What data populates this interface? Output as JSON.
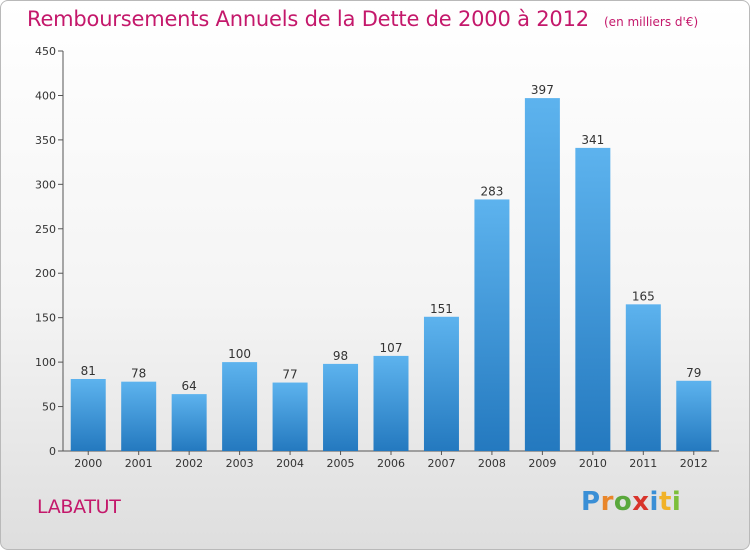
{
  "title": "Remboursements Annuels de la Dette de 2000 à 2012",
  "unit_note": "(en milliers d'€)",
  "place_name": "LABATUT",
  "logo": {
    "text": "Proxiti"
  },
  "colors": {
    "accent": "#c4186b",
    "bar_top": "#5db3ee",
    "bar_bottom": "#2479bf",
    "axis": "#555555"
  },
  "chart_data": {
    "type": "bar",
    "categories": [
      "2000",
      "2001",
      "2002",
      "2003",
      "2004",
      "2005",
      "2006",
      "2007",
      "2008",
      "2009",
      "2010",
      "2011",
      "2012"
    ],
    "values": [
      81,
      78,
      64,
      100,
      77,
      98,
      107,
      151,
      283,
      397,
      341,
      165,
      79
    ],
    "yticks": [
      0,
      50,
      100,
      150,
      200,
      250,
      300,
      350,
      400,
      450
    ],
    "ylim": [
      0,
      450
    ],
    "grid": false,
    "legend": "none"
  }
}
